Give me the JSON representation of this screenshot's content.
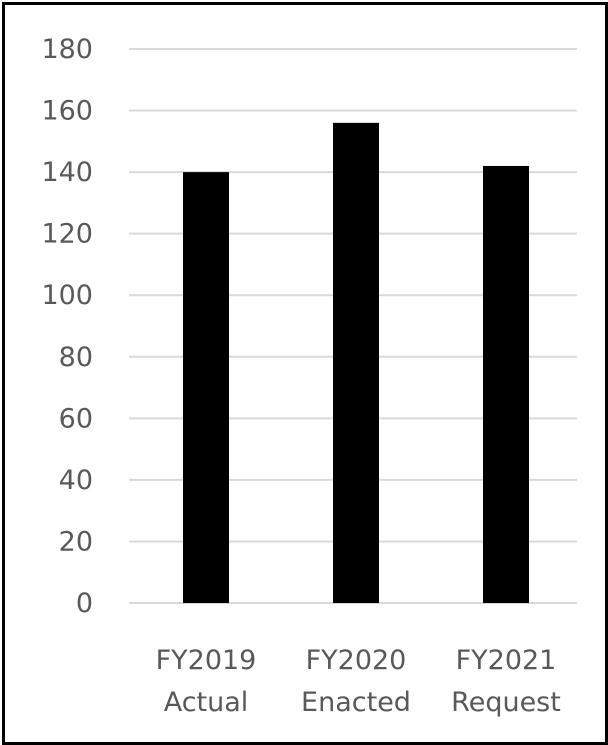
{
  "chart_data": {
    "type": "bar",
    "title": "",
    "xlabel": "",
    "ylabel": "",
    "categories": [
      [
        "FY2019",
        "Actual"
      ],
      [
        "FY2020",
        "Enacted"
      ],
      [
        "FY2021",
        "Request"
      ]
    ],
    "values": [
      140,
      156,
      142
    ],
    "ylim": [
      0,
      180
    ],
    "yticks": [
      0,
      20,
      40,
      60,
      80,
      100,
      120,
      140,
      160,
      180
    ],
    "grid": true,
    "legend": "none",
    "colors": {
      "bar": "#000000",
      "gridline": "#d9d9d9",
      "tick_text": "#595959",
      "border": "#000000"
    }
  }
}
